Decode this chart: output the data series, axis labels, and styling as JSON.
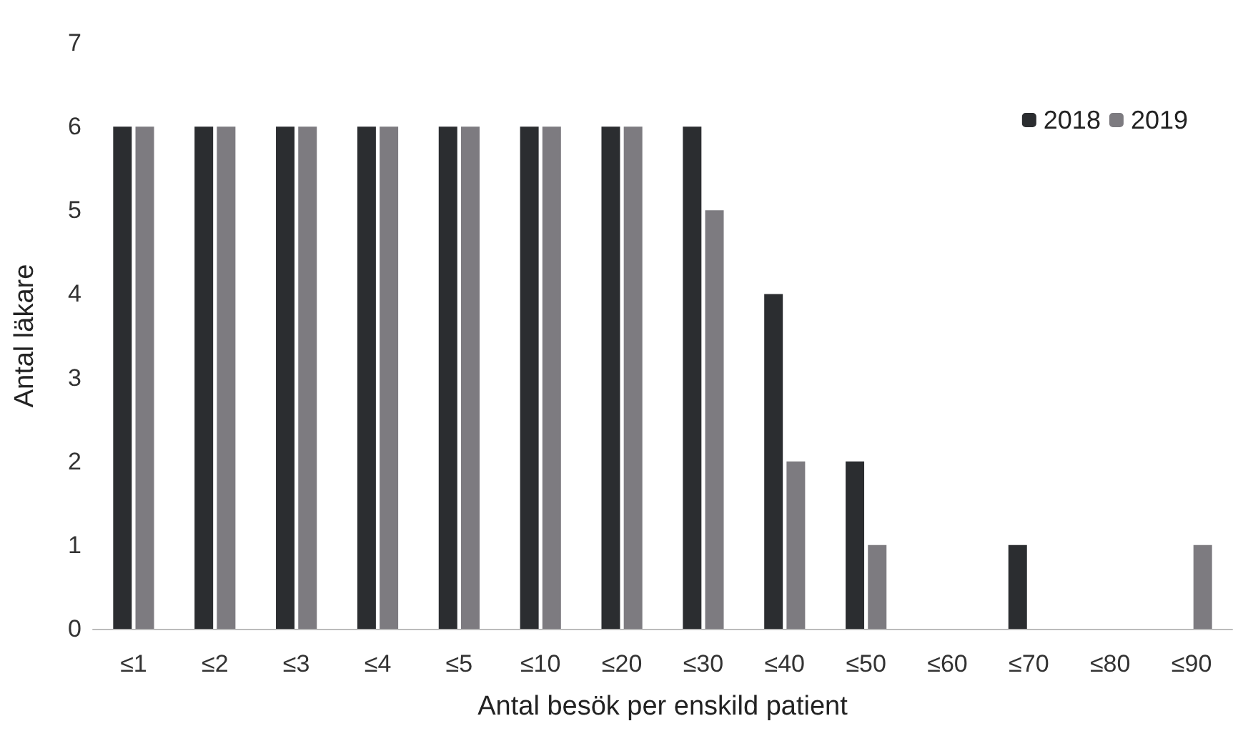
{
  "chart_data": {
    "type": "bar",
    "xlabel": "Antal besök per enskild patient",
    "ylabel": "Antal läkare",
    "categories": [
      "≤1",
      "≤2",
      "≤3",
      "≤4",
      "≤5",
      "≤10",
      "≤20",
      "≤30",
      "≤40",
      "≤50",
      "≤60",
      "≤70",
      "≤80",
      "≤90"
    ],
    "series": [
      {
        "name": "2018",
        "color": "#2b2d30",
        "values": [
          6,
          6,
          6,
          6,
          6,
          6,
          6,
          6,
          4,
          2,
          0,
          1,
          0,
          0
        ]
      },
      {
        "name": "2019",
        "color": "#7d7b80",
        "values": [
          6,
          6,
          6,
          6,
          6,
          6,
          6,
          5,
          2,
          1,
          0,
          0,
          0,
          1
        ]
      }
    ],
    "ylim": [
      0,
      7
    ],
    "yticks": [
      0,
      1,
      2,
      3,
      4,
      5,
      6,
      7
    ],
    "grid": false,
    "legend": "top right"
  }
}
